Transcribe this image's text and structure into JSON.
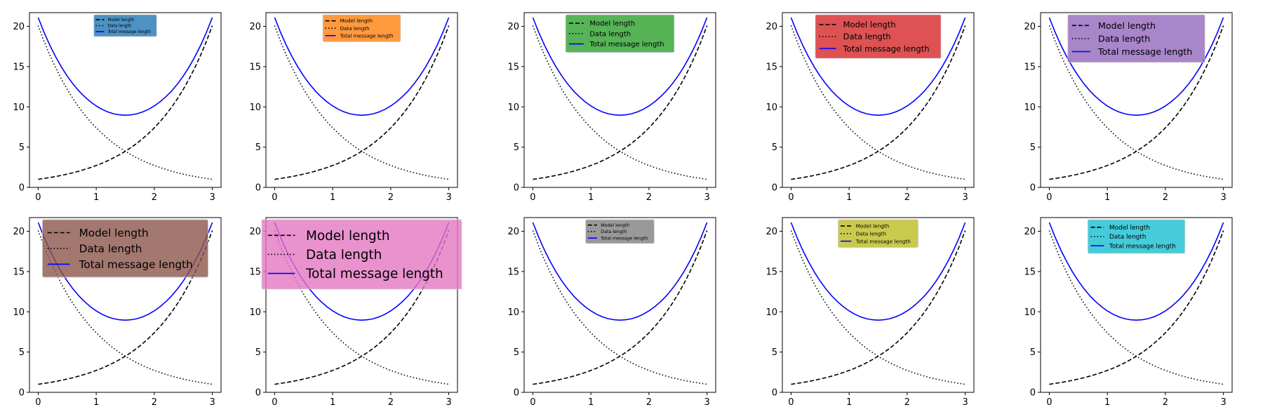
{
  "chart_data": {
    "type": "line",
    "grid": false,
    "panels_layout": "2 rows x 5 columns",
    "x": [
      0.0,
      0.1,
      0.2,
      0.3,
      0.4,
      0.5,
      0.6,
      0.7,
      0.8,
      0.9,
      1.0,
      1.1,
      1.2,
      1.3,
      1.4,
      1.5,
      1.6,
      1.7,
      1.8,
      1.9,
      2.0,
      2.1,
      2.2,
      2.3,
      2.4,
      2.5,
      2.6,
      2.7,
      2.8,
      2.9,
      3.0
    ],
    "xlim": [
      -0.15,
      3.15
    ],
    "ylim": [
      0,
      21.7
    ],
    "x_ticks": [
      0,
      1,
      2,
      3
    ],
    "y_ticks": [
      0,
      5,
      10,
      15,
      20
    ],
    "series": [
      {
        "name": "Model length",
        "line_style": "dashed",
        "color": "#000000",
        "values": [
          1.0,
          1.11,
          1.22,
          1.35,
          1.49,
          1.65,
          1.82,
          2.01,
          2.23,
          2.46,
          2.72,
          3.0,
          3.32,
          3.67,
          4.06,
          4.48,
          4.95,
          5.47,
          6.05,
          6.69,
          7.39,
          8.17,
          9.03,
          9.97,
          11.02,
          12.18,
          13.46,
          14.88,
          16.44,
          18.17,
          20.09
        ]
      },
      {
        "name": "Data length",
        "line_style": "dotted",
        "color": "#000000",
        "values": [
          20.09,
          18.17,
          16.44,
          14.88,
          13.46,
          12.18,
          11.02,
          9.97,
          9.03,
          8.17,
          7.39,
          6.69,
          6.05,
          5.47,
          4.95,
          4.48,
          4.06,
          3.67,
          3.32,
          3.0,
          2.72,
          2.46,
          2.23,
          2.01,
          1.82,
          1.65,
          1.49,
          1.35,
          1.22,
          1.11,
          1.0
        ]
      },
      {
        "name": "Total message length",
        "line_style": "solid",
        "color": "#0000ff",
        "values": [
          21.09,
          19.28,
          17.66,
          16.23,
          14.95,
          13.83,
          12.84,
          11.98,
          11.26,
          10.63,
          10.11,
          9.69,
          9.37,
          9.14,
          9.01,
          8.96,
          9.01,
          9.14,
          9.37,
          9.69,
          10.11,
          10.63,
          11.26,
          11.98,
          12.84,
          13.83,
          14.95,
          16.23,
          17.66,
          19.28,
          21.09
        ]
      }
    ],
    "panels": [
      {
        "legend_color": "#1f77b4",
        "legend_size": 0.55,
        "legend_location": "upper center"
      },
      {
        "legend_color": "#ff7f0e",
        "legend_size": 0.68,
        "legend_location": "upper center"
      },
      {
        "legend_color": "#2ca02c",
        "legend_size": 0.95,
        "legend_location": "upper center"
      },
      {
        "legend_color": "#d62728",
        "legend_size": 1.1,
        "legend_location": "upper center"
      },
      {
        "legend_color": "#9467bd",
        "legend_size": 1.2,
        "legend_location": "upper center"
      },
      {
        "legend_color": "#8c564b",
        "legend_size": 1.45,
        "legend_location": "upper center"
      },
      {
        "legend_color": "#e377c2",
        "legend_size": 1.75,
        "legend_location": "upper center"
      },
      {
        "legend_color": "#7f7f7f",
        "legend_size": 0.6,
        "legend_location": "upper center"
      },
      {
        "legend_color": "#bcbd22",
        "legend_size": 0.7,
        "legend_location": "upper center"
      },
      {
        "legend_color": "#17becf",
        "legend_size": 0.85,
        "legend_location": "upper center"
      }
    ]
  }
}
